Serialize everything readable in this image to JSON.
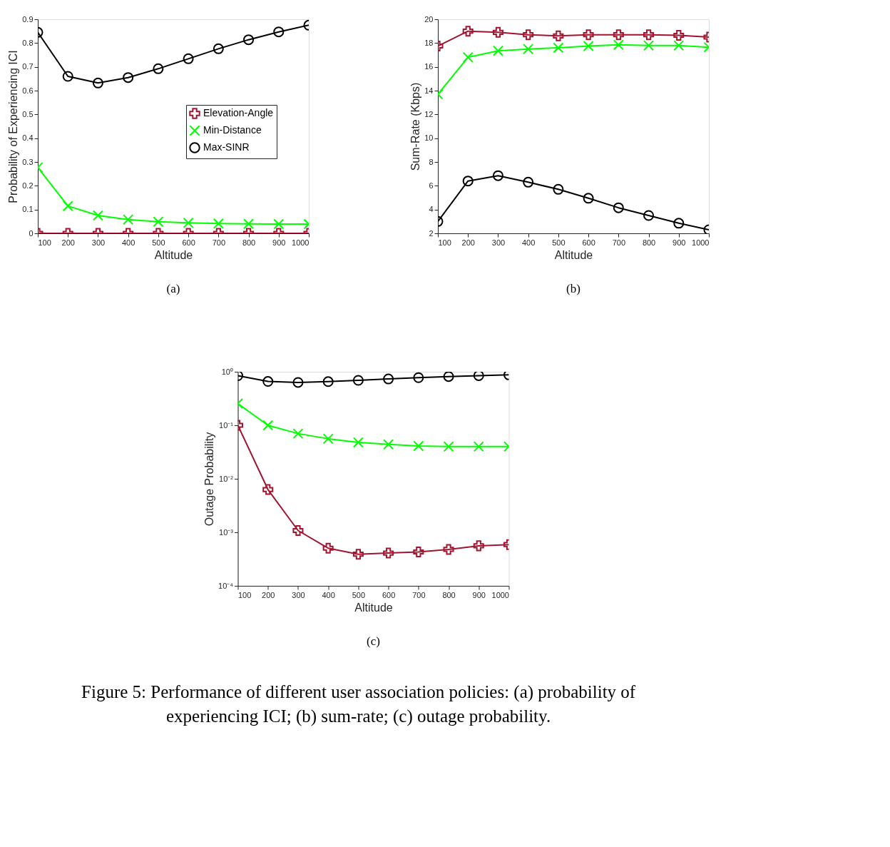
{
  "chart_data": [
    {
      "type": "line",
      "xlabel": "Altitude",
      "ylabel": "Probability of Experiencing ICI",
      "x": [
        100,
        200,
        300,
        400,
        500,
        600,
        700,
        800,
        900,
        1000
      ],
      "xlim": [
        100,
        1000
      ],
      "xticks": [
        100,
        200,
        300,
        400,
        500,
        600,
        700,
        800,
        900,
        1000
      ],
      "ylim": [
        0,
        0.9
      ],
      "yticks": [
        0,
        0.1,
        0.2,
        0.3,
        0.4,
        0.5,
        0.6,
        0.7,
        0.8,
        0.9
      ],
      "grid": false,
      "legend": "right",
      "annotations": [
        "(a)"
      ],
      "series": [
        {
          "name": "Elevation-Angle",
          "color": "#a2142f",
          "marker": "plus",
          "values": [
            0,
            0,
            0,
            0,
            0,
            0,
            0,
            0,
            0,
            0
          ]
        },
        {
          "name": "Min-Distance",
          "color": "#00ff00",
          "marker": "cross",
          "values": [
            0.277,
            0.115,
            0.075,
            0.058,
            0.049,
            0.044,
            0.041,
            0.04,
            0.039,
            0.039
          ]
        },
        {
          "name": "Max-SINR",
          "color": "#000000",
          "marker": "circle",
          "values": [
            0.845,
            0.66,
            0.632,
            0.655,
            0.692,
            0.734,
            0.776,
            0.814,
            0.847,
            0.875
          ]
        }
      ]
    },
    {
      "type": "line",
      "xlabel": "Altitude",
      "ylabel": "Sum-Rate (Kbps)",
      "x": [
        100,
        200,
        300,
        400,
        500,
        600,
        700,
        800,
        900,
        1000
      ],
      "xlim": [
        100,
        1000
      ],
      "xticks": [
        100,
        200,
        300,
        400,
        500,
        600,
        700,
        800,
        900,
        1000
      ],
      "ylim": [
        2,
        20
      ],
      "yticks": [
        2,
        4,
        6,
        8,
        10,
        12,
        14,
        16,
        18,
        20
      ],
      "grid": false,
      "legend": "right",
      "annotations": [
        "(b)"
      ],
      "series": [
        {
          "name": "Elevation-Angle",
          "color": "#a2142f",
          "marker": "plus",
          "values": [
            17.75,
            19.0,
            18.9,
            18.7,
            18.6,
            18.7,
            18.7,
            18.7,
            18.65,
            18.5
          ]
        },
        {
          "name": "Min-Distance",
          "color": "#00ff00",
          "marker": "cross",
          "values": [
            13.7,
            16.8,
            17.35,
            17.5,
            17.6,
            17.75,
            17.85,
            17.8,
            17.8,
            17.65
          ]
        },
        {
          "name": "Max-SINR",
          "color": "#000000",
          "marker": "circle",
          "values": [
            3.0,
            6.4,
            6.85,
            6.3,
            5.7,
            4.95,
            4.15,
            3.5,
            2.85,
            2.3
          ]
        }
      ]
    },
    {
      "type": "line",
      "xlabel": "Altitude",
      "ylabel": "Outage Probability",
      "x": [
        100,
        200,
        300,
        400,
        500,
        600,
        700,
        800,
        900,
        1000
      ],
      "xlim": [
        100,
        1000
      ],
      "xticks": [
        100,
        200,
        300,
        400,
        500,
        600,
        700,
        800,
        900,
        1000
      ],
      "log": "y",
      "ylim": [
        0.0001,
        1
      ],
      "yticks": [
        {
          "value": 0.0001,
          "label": "10⁻⁴"
        },
        {
          "value": 0.001,
          "label": "10⁻³"
        },
        {
          "value": 0.01,
          "label": "10⁻²"
        },
        {
          "value": 0.1,
          "label": "10⁻¹"
        },
        {
          "value": 1,
          "label": "10⁰"
        }
      ],
      "grid": false,
      "legend": "right",
      "annotations": [
        "(c)",
        "Figure 5: Performance of different user association policies: (a) probability of experiencing ICI; (b) sum-rate; (c) outage probability."
      ],
      "series": [
        {
          "name": "Elevation-Angle",
          "color": "#a2142f",
          "marker": "plus",
          "values": [
            0.1,
            0.0063,
            0.00108,
            0.000505,
            0.00039,
            0.00041,
            0.00043,
            0.00048,
            0.00056,
            0.00059
          ]
        },
        {
          "name": "Min-Distance",
          "color": "#00ff00",
          "marker": "cross",
          "values": [
            0.255,
            0.1,
            0.07,
            0.056,
            0.048,
            0.044,
            0.041,
            0.04,
            0.04,
            0.04
          ]
        },
        {
          "name": "Max-SINR",
          "color": "#000000",
          "marker": "circle",
          "values": [
            0.845,
            0.66,
            0.632,
            0.655,
            0.692,
            0.734,
            0.776,
            0.814,
            0.847,
            0.875
          ]
        }
      ]
    }
  ]
}
